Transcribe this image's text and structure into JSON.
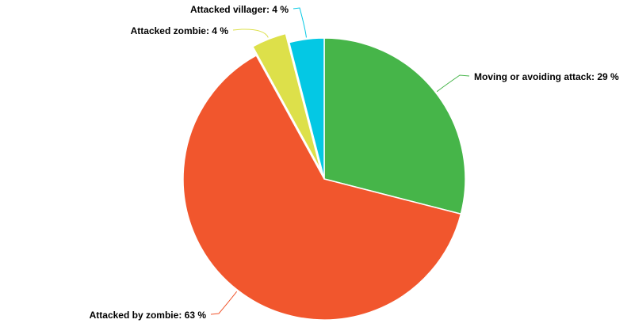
{
  "chart_data": {
    "type": "pie",
    "title": "",
    "slices": [
      {
        "label": "Moving or avoiding attack: 29 %",
        "category": "Moving or avoiding attack",
        "value": 29,
        "color": "#46b549"
      },
      {
        "label": "Attacked by zombie: 63 %",
        "category": "Attacked by zombie",
        "value": 63,
        "color": "#f1562d"
      },
      {
        "label": "Attacked zombie: 4 %",
        "category": "Attacked zombie",
        "value": 4,
        "color": "#dde04a",
        "exploded": true
      },
      {
        "label": "Attacked villager: 4 %",
        "category": "Attacked villager",
        "value": 4,
        "color": "#04c8e4"
      }
    ],
    "start_angle_deg": 0,
    "direction": "clockwise",
    "legend": "none",
    "labels": "outside with leader lines"
  }
}
